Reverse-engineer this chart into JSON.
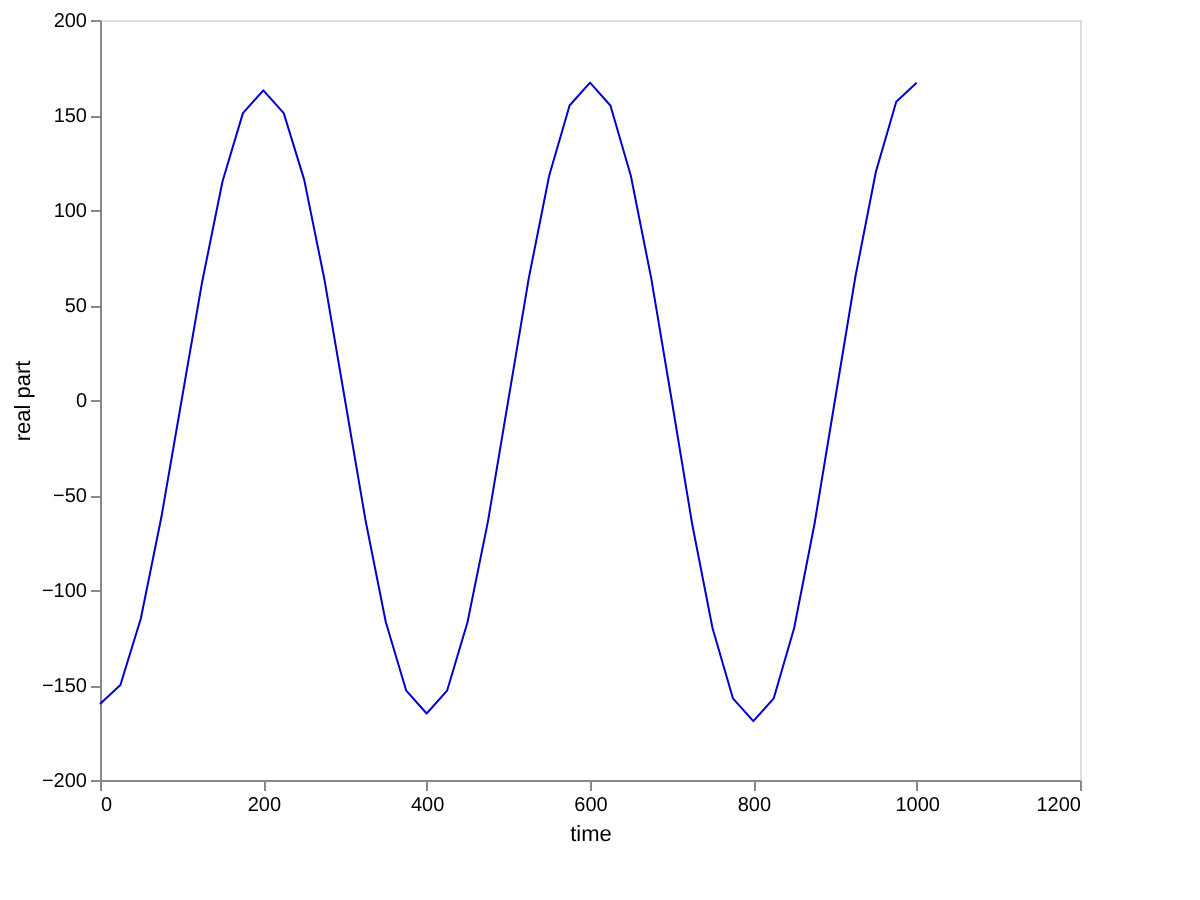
{
  "chart_data": {
    "type": "line",
    "xlabel": "time",
    "ylabel": "real part",
    "x": [
      0,
      25,
      50,
      75,
      100,
      125,
      150,
      175,
      200,
      225,
      250,
      275,
      300,
      325,
      350,
      375,
      400,
      425,
      450,
      475,
      500,
      525,
      550,
      575,
      600,
      625,
      650,
      675,
      700,
      725,
      750,
      775,
      800,
      825,
      850,
      875,
      900,
      925,
      950,
      975,
      1000
    ],
    "series": [
      {
        "color": "#0000cc",
        "values": [
          -160,
          -150,
          -115,
          -62,
          0,
          62,
          115,
          151,
          163,
          151,
          116,
          63,
          0,
          -63,
          -117,
          -153,
          -165,
          -153,
          -117,
          -64,
          0,
          64,
          118,
          155,
          167,
          155,
          118,
          64,
          0,
          -65,
          -120,
          -157,
          -169,
          -157,
          -120,
          -65,
          0,
          65,
          120,
          157,
          167
        ]
      }
    ],
    "xlim": [
      0,
      1200
    ],
    "xticks": [
      0,
      200,
      400,
      600,
      800,
      1000,
      1200
    ],
    "ylim": [
      -200,
      200
    ],
    "yticks": [
      -200,
      -150,
      -100,
      -50,
      0,
      50,
      100,
      150,
      200
    ],
    "grid": false,
    "marker": "none",
    "line_style": "solid"
  }
}
